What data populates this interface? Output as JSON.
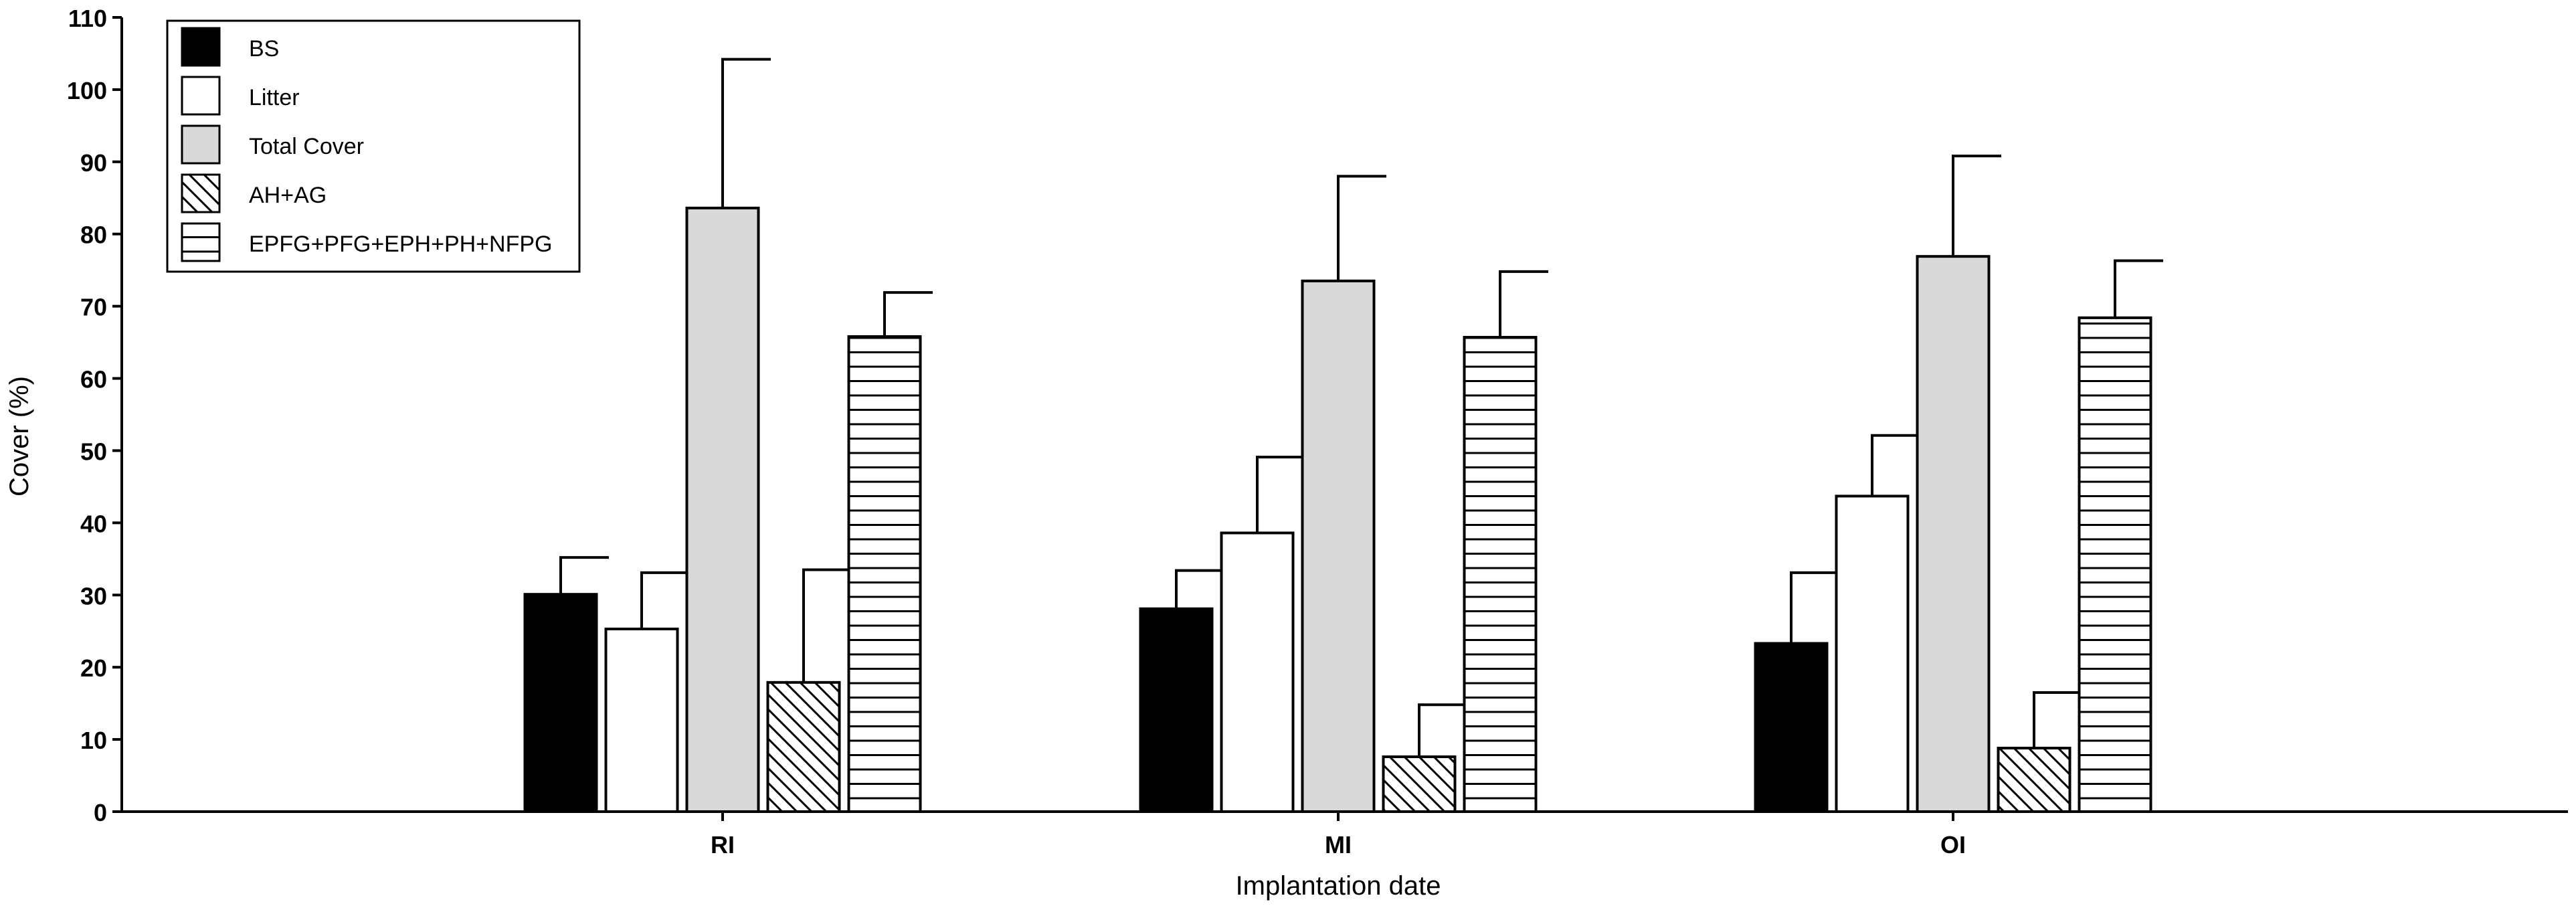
{
  "chart_data": {
    "type": "bar",
    "xlabel": "Implantation date",
    "ylabel": "Cover (%)",
    "ylim": [
      0,
      110
    ],
    "yticks": [
      0,
      10,
      20,
      30,
      40,
      50,
      60,
      70,
      80,
      90,
      100,
      110
    ],
    "categories": [
      "RI",
      "MI",
      "OI"
    ],
    "legend_position": "top-left",
    "grid": false,
    "series": [
      {
        "name": "BS",
        "fill": "solid-black",
        "color": "#000000",
        "values": [
          30.1,
          28.1,
          23.3
        ],
        "errors": [
          5.1,
          5.3,
          9.8
        ]
      },
      {
        "name": "Litter",
        "fill": "white",
        "color": "#ffffff",
        "values": [
          25.3,
          38.6,
          43.7
        ],
        "errors": [
          7.8,
          10.5,
          8.4
        ]
      },
      {
        "name": "Total Cover",
        "fill": "light-gray",
        "color": "#d9d9d9",
        "values": [
          83.6,
          73.5,
          76.9
        ],
        "errors": [
          20.6,
          14.5,
          13.9
        ]
      },
      {
        "name": "AH+AG",
        "fill": "diagonal-hatch",
        "color": "#ffffff",
        "values": [
          17.9,
          7.6,
          8.8
        ],
        "errors": [
          15.6,
          7.2,
          7.7
        ]
      },
      {
        "name": "EPFG+PFG+EPH+PH+NFPG",
        "fill": "horizontal-hatch",
        "color": "#ffffff",
        "values": [
          65.8,
          65.7,
          68.4
        ],
        "errors": [
          6.1,
          9.1,
          7.9
        ]
      }
    ]
  }
}
